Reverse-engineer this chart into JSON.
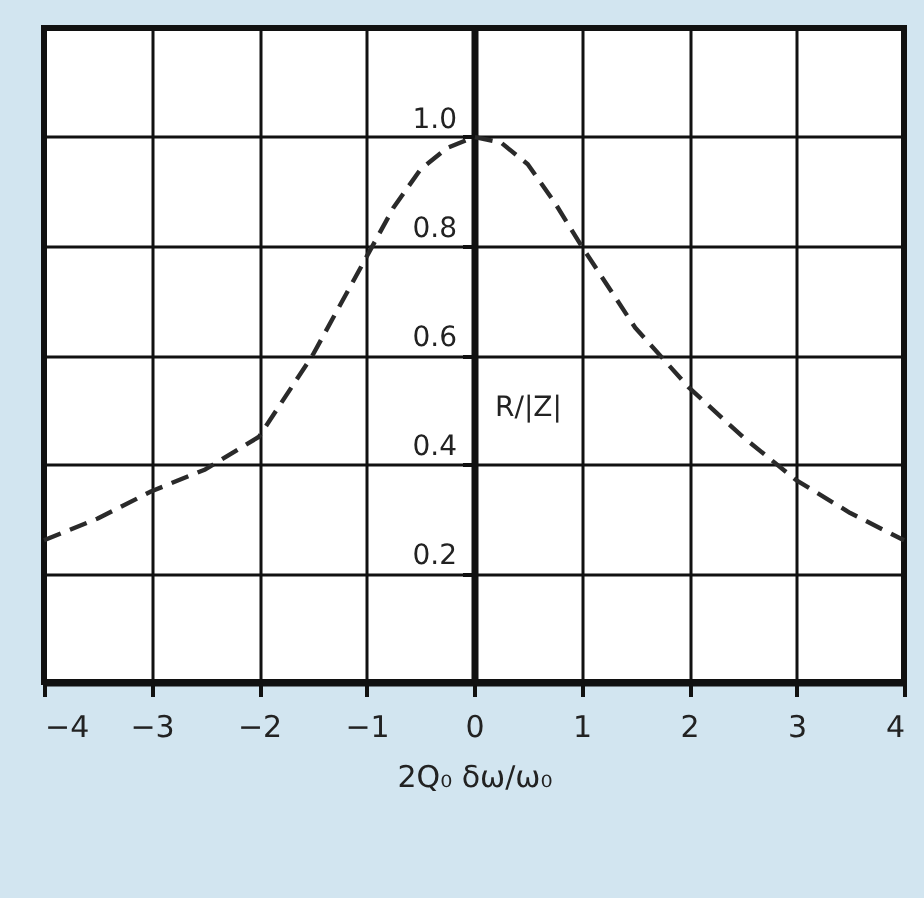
{
  "chart_data": {
    "type": "line",
    "xlabel": "2Q₀ δω/ω₀",
    "ylabel": "R/|Z|",
    "x": [
      -4,
      -3.5,
      -3,
      -2.5,
      -2,
      -1.5,
      -1,
      -0.75,
      -0.5,
      -0.25,
      0,
      0.25,
      0.5,
      0.75,
      1,
      1.5,
      2,
      2.5,
      3,
      3.5,
      4
    ],
    "series": [
      {
        "color": "#2a2a2a",
        "values": [
          0.26,
          0.3,
          0.35,
          0.39,
          0.45,
          0.6,
          0.78,
          0.87,
          0.94,
          0.98,
          1.0,
          0.99,
          0.95,
          0.88,
          0.8,
          0.65,
          0.54,
          0.45,
          0.37,
          0.31,
          0.26
        ]
      }
    ],
    "xlim": [
      -4,
      4
    ],
    "xticks": [
      -4,
      -3,
      -2,
      -1,
      0,
      1,
      2,
      3,
      4
    ],
    "ylim": [
      0,
      1.2
    ],
    "yticks": [
      0.2,
      0.4,
      0.6,
      0.8,
      {
        "value": 1.0,
        "label": "1.0"
      },
      {
        "value": 1.2,
        "label": null
      }
    ],
    "grid": true,
    "line_style": "dashed",
    "marker": "none"
  }
}
